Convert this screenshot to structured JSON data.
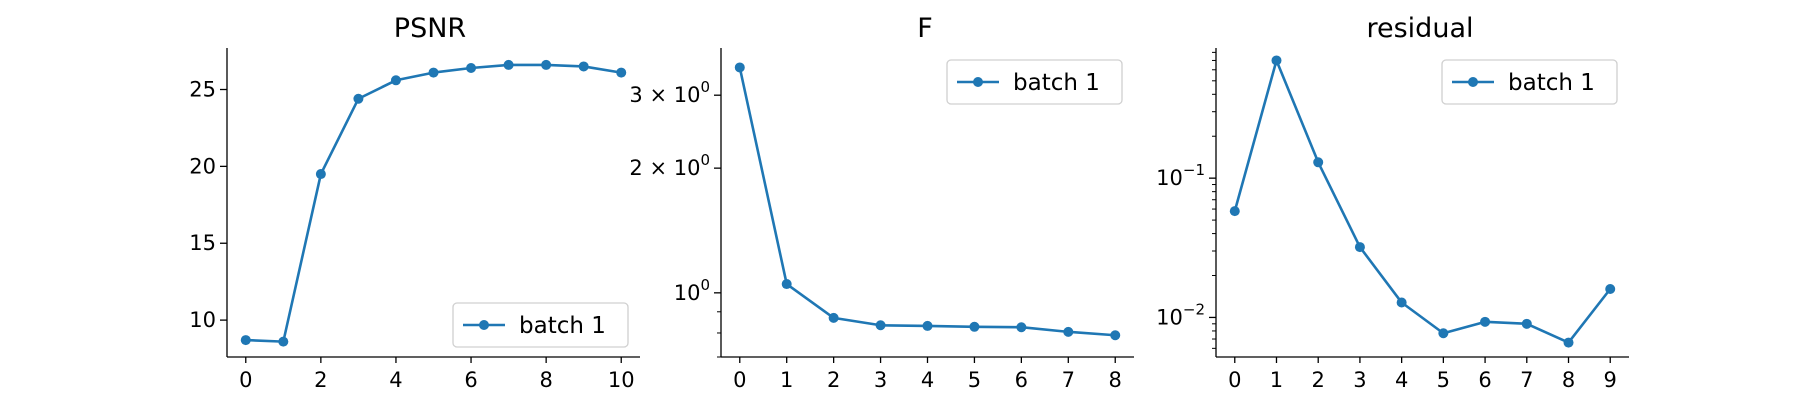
{
  "colors": {
    "series": "#1f77b4",
    "axis": "#000000"
  },
  "chart_data": [
    {
      "type": "line",
      "title": "PSNR",
      "xlabel": "",
      "ylabel": "",
      "yscale": "linear",
      "x": [
        0,
        1,
        2,
        3,
        4,
        5,
        6,
        7,
        8,
        9,
        10
      ],
      "series": [
        {
          "name": "batch 1",
          "values": [
            8.7,
            8.6,
            19.5,
            24.4,
            25.6,
            26.1,
            26.4,
            26.6,
            26.6,
            26.5,
            26.1
          ]
        }
      ],
      "xlim": [
        -0.5,
        10.5
      ],
      "ylim": [
        7.6,
        27.7
      ],
      "xticks": [
        0,
        2,
        4,
        6,
        8,
        10
      ],
      "xtick_labels": [
        "0",
        "2",
        "4",
        "6",
        "8",
        "10"
      ],
      "yticks": [
        10,
        15,
        20,
        25
      ],
      "ytick_labels": [
        "10",
        "15",
        "20",
        "25"
      ],
      "legend": "lower-right",
      "grid": false
    },
    {
      "type": "line",
      "title": "F",
      "xlabel": "",
      "ylabel": "",
      "yscale": "log",
      "x": [
        0,
        1,
        2,
        3,
        4,
        5,
        6,
        7,
        8
      ],
      "series": [
        {
          "name": "batch 1",
          "values": [
            3.5,
            1.05,
            0.87,
            0.835,
            0.832,
            0.828,
            0.826,
            0.805,
            0.79
          ]
        }
      ],
      "xlim": [
        -0.4,
        8.4
      ],
      "ylim": [
        0.7,
        3.9
      ],
      "xticks": [
        0,
        1,
        2,
        3,
        4,
        5,
        6,
        7,
        8
      ],
      "xtick_labels": [
        "0",
        "1",
        "2",
        "3",
        "4",
        "5",
        "6",
        "7",
        "8"
      ],
      "yticks": [
        1,
        2,
        3
      ],
      "ytick_labels": [
        {
          "base": "10",
          "exp": "0"
        },
        {
          "base": "2 × 10",
          "exp": "0"
        },
        {
          "base": "3 × 10",
          "exp": "0"
        }
      ],
      "legend": "top-right",
      "grid": false
    },
    {
      "type": "line",
      "title": "residual",
      "xlabel": "",
      "ylabel": "",
      "yscale": "log",
      "x": [
        0,
        1,
        2,
        3,
        4,
        5,
        6,
        7,
        8,
        9
      ],
      "series": [
        {
          "name": "batch 1",
          "values": [
            0.058,
            0.7,
            0.13,
            0.032,
            0.0128,
            0.0077,
            0.0093,
            0.009,
            0.0066,
            0.016
          ]
        }
      ],
      "xlim": [
        -0.45,
        9.45
      ],
      "ylim": [
        0.0052,
        0.86
      ],
      "xticks": [
        0,
        1,
        2,
        3,
        4,
        5,
        6,
        7,
        8,
        9
      ],
      "xtick_labels": [
        "0",
        "1",
        "2",
        "3",
        "4",
        "5",
        "6",
        "7",
        "8",
        "9"
      ],
      "yticks": [
        0.01,
        0.1
      ],
      "ytick_labels": [
        {
          "base": "10",
          "exp": "−2"
        },
        {
          "base": "10",
          "exp": "−1"
        }
      ],
      "legend": "top-right",
      "grid": false
    }
  ]
}
